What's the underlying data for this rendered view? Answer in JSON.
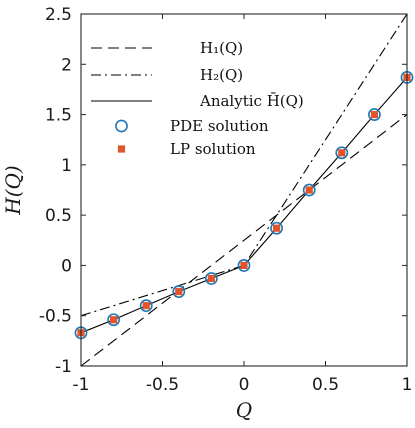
{
  "chart_data": {
    "type": "line",
    "xlabel": "Q",
    "ylabel": "H(Q)",
    "xlim": [
      -1,
      1
    ],
    "ylim": [
      -1,
      2.5
    ],
    "x_ticks": [
      -1,
      -0.5,
      0,
      0.5,
      1
    ],
    "x_tick_labels": [
      "-1",
      "-0.5",
      "0",
      "0.5",
      "1"
    ],
    "y_ticks": [
      -1,
      -0.5,
      0,
      0.5,
      1,
      1.5,
      2,
      2.5
    ],
    "y_tick_labels": [
      "-1",
      "-0.5",
      "0",
      "0.5",
      "1",
      "1.5",
      "2",
      "2.5"
    ],
    "grid": false,
    "legend_position": "top-left",
    "series": [
      {
        "name": "H₁(Q)",
        "style": "dashed",
        "color": "#000000",
        "x": [
          -1,
          1
        ],
        "y": [
          -1,
          1.5
        ]
      },
      {
        "name": "H₂(Q)",
        "style": "dashdot",
        "color": "#000000",
        "x": [
          -1,
          0,
          1
        ],
        "y": [
          -0.5,
          0,
          2.5
        ]
      },
      {
        "name": "Analytic H̄(Q)",
        "style": "solid",
        "color": "#000000",
        "x": [
          -1,
          -0.8,
          -0.6,
          -0.4,
          -0.2,
          0,
          0.2,
          0.4,
          0.6,
          0.8,
          1
        ],
        "y": [
          -0.67,
          -0.54,
          -0.4,
          -0.26,
          -0.13,
          0,
          0.37,
          0.75,
          1.12,
          1.5,
          1.87
        ]
      },
      {
        "name": "PDE solution",
        "style": "circle",
        "color": "#1f77b4",
        "x": [
          -1,
          -0.8,
          -0.6,
          -0.4,
          -0.2,
          0,
          0.2,
          0.4,
          0.6,
          0.8,
          1
        ],
        "y": [
          -0.67,
          -0.54,
          -0.4,
          -0.26,
          -0.13,
          0,
          0.37,
          0.75,
          1.12,
          1.5,
          1.87
        ]
      },
      {
        "name": "LP solution",
        "style": "square",
        "color": "#e0552a",
        "x": [
          -1,
          -0.8,
          -0.6,
          -0.4,
          -0.2,
          0,
          0.2,
          0.4,
          0.6,
          0.8,
          1
        ],
        "y": [
          -0.67,
          -0.54,
          -0.4,
          -0.26,
          -0.13,
          0,
          0.37,
          0.75,
          1.12,
          1.5,
          1.87
        ]
      }
    ]
  }
}
